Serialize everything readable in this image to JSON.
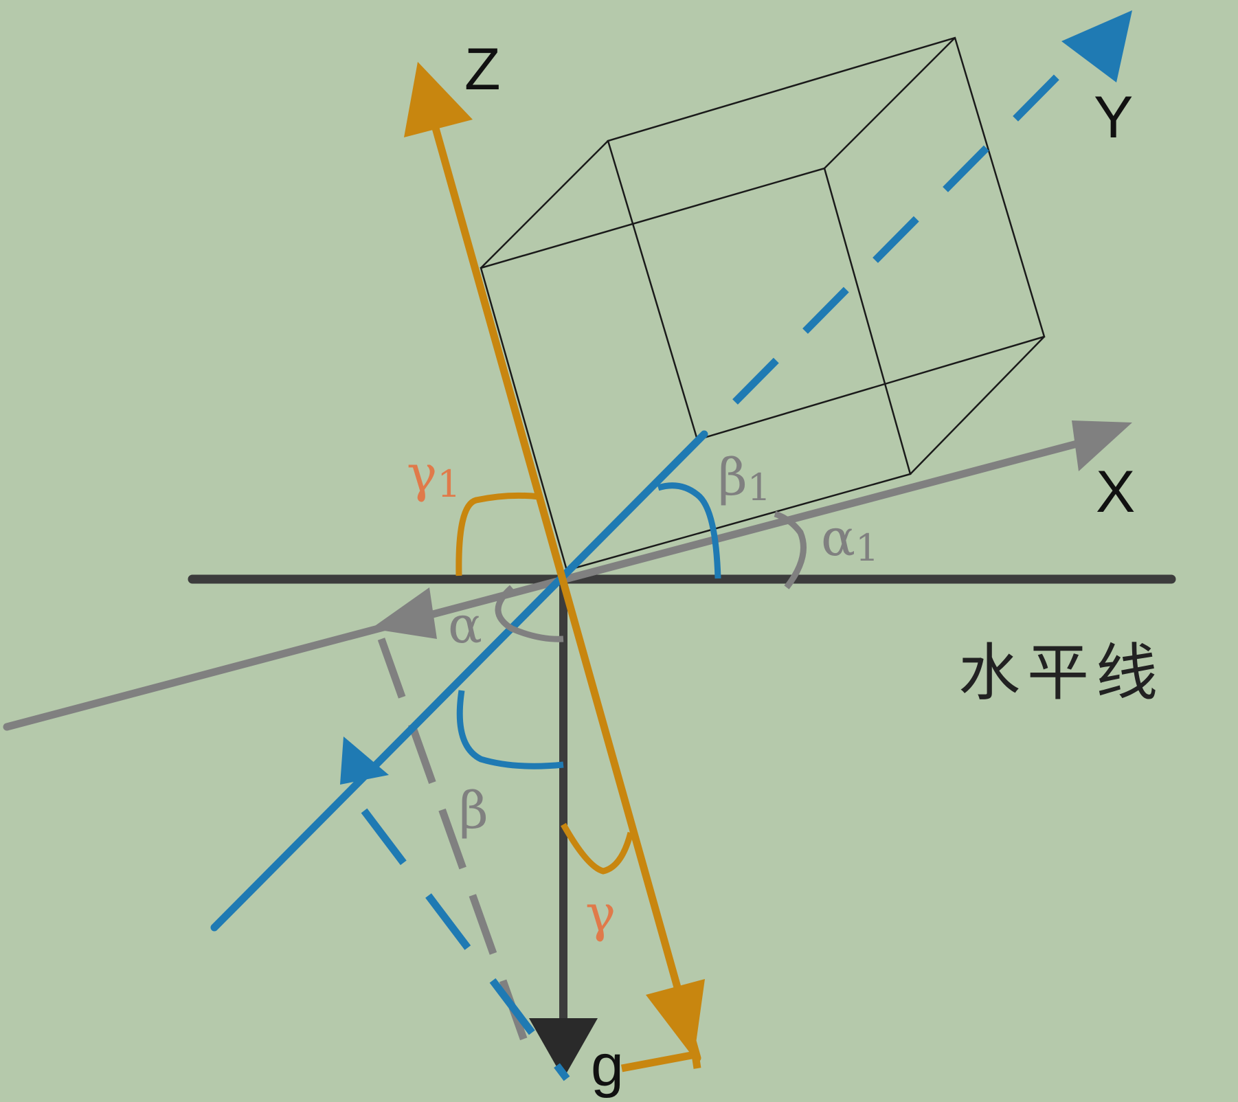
{
  "colors": {
    "background": "#b5c9ab",
    "z_axis": "#c8860f",
    "y_axis": "#1f7ab3",
    "x_axis": "#808080",
    "horizontal": "#3c3c3c",
    "cube": "#1a1a1a",
    "gamma_label": "#e07a4a"
  },
  "labels": {
    "z": "Z",
    "y": "Y",
    "x": "X",
    "g": "g",
    "horizontal_line": "水平线"
  },
  "angles": {
    "gamma1": {
      "symbol": "γ",
      "sub": "1"
    },
    "beta1": {
      "symbol": "β",
      "sub": "1"
    },
    "alpha1": {
      "symbol": "α",
      "sub": "1"
    },
    "alpha": {
      "symbol": "α"
    },
    "beta": {
      "symbol": "β"
    },
    "gamma": {
      "symbol": "γ"
    }
  }
}
